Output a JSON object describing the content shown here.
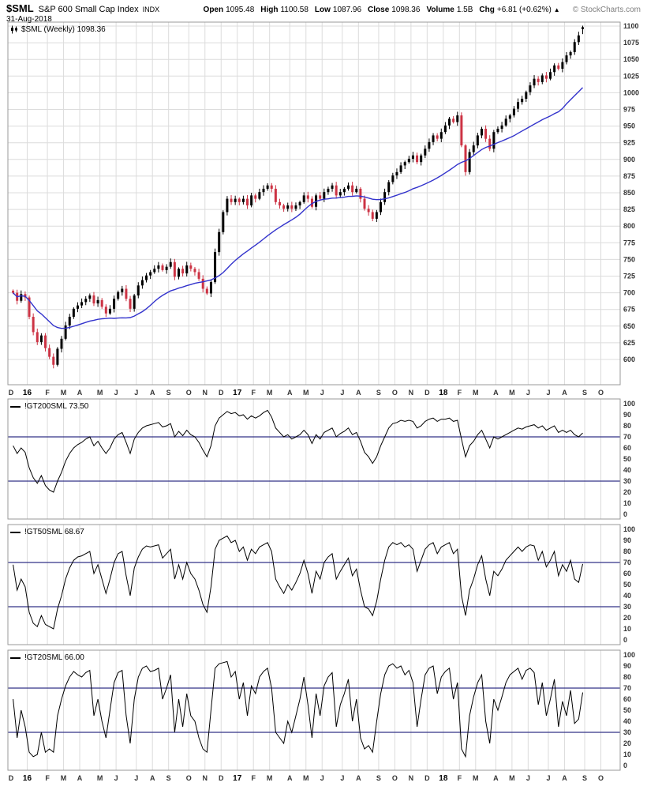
{
  "header": {
    "symbol": "$SML",
    "name": "S&P 600 Small Cap Index",
    "exchange": "INDX",
    "date": "31-Aug-2018",
    "copyright": "© StockCharts.com",
    "quote": {
      "open_label": "Open",
      "open": "1095.48",
      "high_label": "High",
      "high": "1100.58",
      "low_label": "Low",
      "low": "1087.96",
      "close_label": "Close",
      "close": "1098.36",
      "volume_label": "Volume",
      "volume": "1.5B",
      "chg_label": "Chg",
      "chg": "+6.81 (+0.62%)",
      "chg_arrow": "▲"
    }
  },
  "colors": {
    "grid": "#dcdcdc",
    "border": "#999999",
    "candle_up": "#000000",
    "candle_down": "#cc3344",
    "ma": "#3333cc",
    "hline": "#333388",
    "indicator": "#000000"
  },
  "chart_data": [
    {
      "type": "candlestick",
      "title": "$SML (Weekly)",
      "label": "$SML (Weekly) 1098.36",
      "ylim": [
        600,
        1100
      ],
      "ytick_step": 25,
      "legend_position": "top-left",
      "month_labels": [
        "D",
        "16",
        "F",
        "M",
        "A",
        "M",
        "J",
        "J",
        "A",
        "S",
        "O",
        "N",
        "D",
        "17",
        "F",
        "M",
        "A",
        "M",
        "J",
        "J",
        "A",
        "S",
        "O",
        "N",
        "D",
        "18",
        "F",
        "M",
        "A",
        "M",
        "J",
        "J",
        "A",
        "S",
        "O"
      ],
      "weeks_per_month": [
        4,
        5,
        4,
        4,
        5,
        4,
        5,
        4,
        4,
        5,
        4,
        4,
        4,
        4,
        4,
        5,
        4,
        4,
        5,
        4,
        5,
        4,
        4,
        4,
        4,
        4,
        4,
        5,
        4,
        4,
        5,
        4,
        5,
        4,
        4
      ],
      "ma_period": 25,
      "ma_name": "moving average",
      "last_bar": {
        "open": 1095.48,
        "high": 1100.58,
        "low": 1087.96,
        "close": 1098.36
      },
      "weekly_close": [
        700,
        688,
        698,
        693,
        664,
        641,
        626,
        636,
        617,
        604,
        592,
        616,
        631,
        651,
        664,
        676,
        681,
        686,
        691,
        696,
        684,
        689,
        679,
        669,
        676,
        691,
        701,
        706,
        691,
        676,
        696,
        711,
        719,
        726,
        731,
        736,
        741,
        734,
        739,
        746,
        724,
        736,
        729,
        741,
        736,
        731,
        721,
        706,
        699,
        716,
        761,
        791,
        821,
        841,
        836,
        841,
        836,
        841,
        831,
        846,
        841,
        851,
        856,
        861,
        856,
        836,
        831,
        826,
        831,
        826,
        831,
        836,
        846,
        841,
        829,
        846,
        841,
        851,
        856,
        861,
        846,
        851,
        856,
        861,
        851,
        856,
        841,
        826,
        821,
        811,
        821,
        836,
        851,
        866,
        876,
        881,
        891,
        896,
        901,
        906,
        896,
        906,
        916,
        926,
        936,
        931,
        941,
        951,
        961,
        956,
        966,
        921,
        881,
        911,
        921,
        936,
        946,
        931,
        916,
        941,
        946,
        951,
        961,
        966,
        976,
        986,
        991,
        1001,
        1011,
        1021,
        1016,
        1026,
        1021,
        1031,
        1041,
        1036,
        1046,
        1056,
        1061,
        1076,
        1086,
        1098.36
      ]
    },
    {
      "type": "line",
      "title": "!GT200SML",
      "label": "!GT200SML 73.50",
      "last_value": 73.5,
      "ylim": [
        0,
        100
      ],
      "ytick_step": 10,
      "hlines": [
        70,
        30
      ],
      "values": [
        62,
        55,
        60,
        56,
        42,
        33,
        28,
        35,
        26,
        22,
        20,
        30,
        38,
        48,
        55,
        60,
        63,
        65,
        68,
        70,
        62,
        66,
        60,
        55,
        60,
        68,
        72,
        74,
        65,
        55,
        68,
        74,
        78,
        80,
        81,
        82,
        83,
        79,
        80,
        82,
        70,
        75,
        71,
        76,
        72,
        70,
        65,
        58,
        52,
        62,
        80,
        87,
        90,
        93,
        91,
        92,
        89,
        90,
        86,
        89,
        87,
        89,
        92,
        94,
        88,
        78,
        74,
        70,
        72,
        68,
        70,
        72,
        76,
        72,
        64,
        72,
        68,
        74,
        76,
        78,
        70,
        73,
        75,
        78,
        72,
        74,
        66,
        56,
        52,
        46,
        52,
        62,
        70,
        78,
        82,
        83,
        85,
        84,
        85,
        84,
        78,
        80,
        84,
        86,
        87,
        84,
        86,
        86,
        87,
        84,
        85,
        68,
        52,
        62,
        66,
        72,
        76,
        68,
        60,
        70,
        68,
        70,
        72,
        74,
        76,
        78,
        77,
        79,
        80,
        81,
        78,
        80,
        76,
        78,
        80,
        74,
        76,
        74,
        76,
        72,
        70,
        73.5
      ]
    },
    {
      "type": "line",
      "title": "!GT50SML",
      "label": "!GT50SML 68.67",
      "last_value": 68.67,
      "ylim": [
        0,
        100
      ],
      "ytick_step": 10,
      "hlines": [
        70,
        30
      ],
      "values": [
        68,
        45,
        55,
        48,
        25,
        15,
        12,
        22,
        14,
        12,
        10,
        28,
        40,
        55,
        65,
        72,
        75,
        76,
        78,
        80,
        60,
        68,
        55,
        42,
        55,
        70,
        78,
        80,
        58,
        40,
        65,
        75,
        82,
        85,
        84,
        85,
        86,
        74,
        78,
        82,
        55,
        68,
        55,
        70,
        60,
        55,
        45,
        32,
        25,
        48,
        82,
        90,
        92,
        94,
        88,
        90,
        80,
        84,
        72,
        82,
        78,
        84,
        86,
        88,
        80,
        55,
        48,
        42,
        50,
        45,
        52,
        60,
        72,
        60,
        42,
        62,
        55,
        70,
        75,
        78,
        55,
        62,
        68,
        74,
        58,
        64,
        45,
        30,
        28,
        22,
        35,
        55,
        72,
        84,
        88,
        86,
        88,
        84,
        86,
        82,
        62,
        72,
        82,
        86,
        88,
        78,
        84,
        86,
        88,
        78,
        82,
        40,
        22,
        45,
        55,
        68,
        76,
        55,
        40,
        62,
        58,
        64,
        72,
        76,
        80,
        84,
        80,
        84,
        86,
        85,
        72,
        80,
        66,
        72,
        80,
        58,
        68,
        62,
        72,
        55,
        52,
        68.67
      ]
    },
    {
      "type": "line",
      "title": "!GT20SML",
      "label": "!GT20SML 66.00",
      "last_value": 66.0,
      "ylim": [
        0,
        100
      ],
      "ytick_step": 10,
      "hlines": [
        70,
        30
      ],
      "values": [
        60,
        25,
        50,
        35,
        12,
        8,
        10,
        30,
        12,
        15,
        12,
        45,
        60,
        72,
        80,
        85,
        82,
        80,
        84,
        86,
        45,
        60,
        40,
        25,
        50,
        75,
        84,
        86,
        45,
        20,
        60,
        80,
        88,
        90,
        85,
        86,
        88,
        60,
        70,
        82,
        30,
        60,
        35,
        65,
        45,
        40,
        25,
        15,
        12,
        50,
        88,
        92,
        93,
        94,
        80,
        85,
        60,
        75,
        45,
        72,
        65,
        80,
        85,
        88,
        70,
        30,
        25,
        20,
        40,
        30,
        45,
        60,
        80,
        55,
        25,
        65,
        45,
        72,
        80,
        84,
        35,
        55,
        65,
        78,
        40,
        60,
        25,
        15,
        18,
        12,
        40,
        65,
        82,
        90,
        92,
        88,
        90,
        82,
        86,
        75,
        35,
        60,
        82,
        88,
        90,
        65,
        80,
        85,
        88,
        60,
        75,
        15,
        8,
        45,
        62,
        75,
        82,
        40,
        20,
        60,
        50,
        62,
        75,
        82,
        85,
        88,
        78,
        86,
        88,
        84,
        55,
        75,
        45,
        60,
        78,
        35,
        58,
        45,
        68,
        38,
        42,
        66
      ]
    }
  ]
}
